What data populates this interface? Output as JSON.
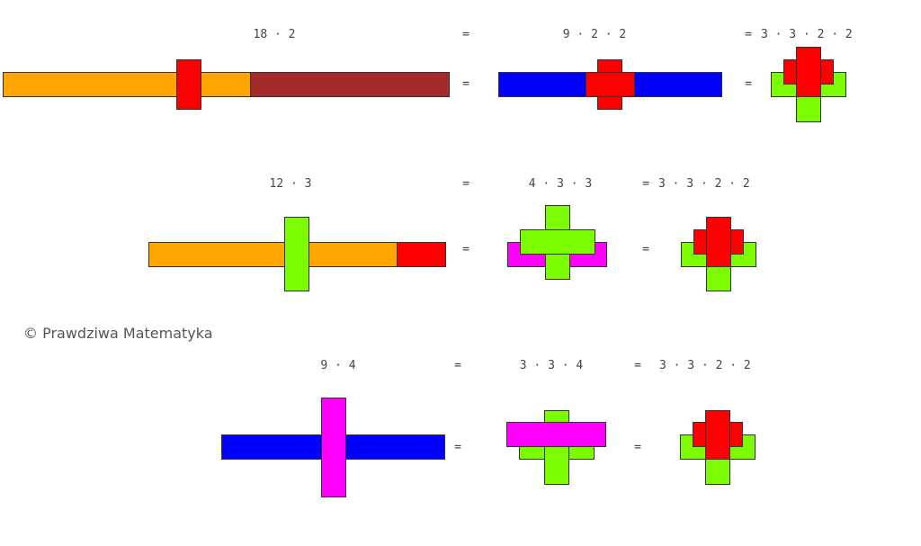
{
  "rows": [
    {
      "expressions": [
        "18 · 2",
        "9 · 2 · 2",
        "3 · 3 · 2 · 2"
      ],
      "equals": "="
    },
    {
      "expressions": [
        "12 · 3",
        "4 · 3 · 3",
        "3 · 3 · 2 · 2"
      ],
      "equals": "="
    },
    {
      "expressions": [
        "9 · 4",
        "3 · 3 · 4",
        "3 · 3 · 2 · 2"
      ],
      "equals": "="
    }
  ],
  "copyright": "© Prawdziwa Matematyka",
  "colors": {
    "orange": "#ffa500",
    "brown": "#a52a2a",
    "red": "#ff0000",
    "blue": "#0000ff",
    "green": "#7cfc00",
    "magenta": "#ff00ff"
  }
}
